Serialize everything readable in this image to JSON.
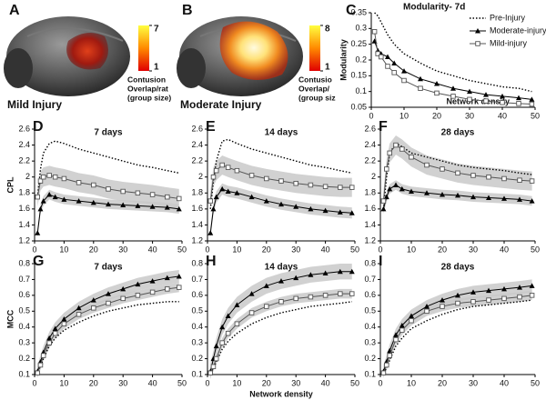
{
  "panels": [
    {
      "label": "A",
      "caption": "Mild Injury",
      "clim": [
        1,
        7
      ],
      "colorbar_ticks": [
        7,
        1
      ],
      "colorbar_label": [
        "Contusion",
        "Overlap/rat",
        "(group size)"
      ]
    },
    {
      "label": "B",
      "caption": "Moderate Injury",
      "clim": [
        1,
        8
      ],
      "colorbar_ticks": [
        8,
        1
      ],
      "colorbar_label": [
        "Contusio",
        "Overlap/",
        "(group siz"
      ]
    }
  ],
  "chart_data": [
    {
      "type": "line",
      "label": "C",
      "title": "Modularity- 7d",
      "ylabel": "Modularity",
      "xlabel": "Network density",
      "legend": "upper right",
      "x": [
        1,
        2,
        3,
        5,
        7,
        10,
        15,
        20,
        25,
        30,
        35,
        40,
        45,
        49
      ],
      "xlim": [
        0,
        50
      ],
      "xticks": [
        0,
        10,
        20,
        30,
        40,
        50
      ],
      "ylim": [
        0.05,
        0.35
      ],
      "yticks": [
        0.05,
        0.1,
        0.15,
        0.2,
        0.25,
        0.3,
        0.35
      ],
      "series": [
        {
          "name": "Pre-Injury",
          "color": "#000000",
          "dash": "dotted",
          "marker": "none",
          "values": [
            0.35,
            0.34,
            0.32,
            0.28,
            0.25,
            0.22,
            0.19,
            0.165,
            0.15,
            0.135,
            0.125,
            0.115,
            0.11,
            0.1
          ]
        },
        {
          "name": "Moderate-injury",
          "color": "#000000",
          "marker": "triangle",
          "values": [
            0.26,
            0.23,
            0.22,
            0.21,
            0.19,
            0.165,
            0.14,
            0.125,
            0.11,
            0.1,
            0.09,
            0.085,
            0.08,
            0.075
          ]
        },
        {
          "name": "Mild-injury",
          "color": "#555555",
          "marker": "square",
          "values": [
            0.29,
            0.22,
            0.21,
            0.18,
            0.16,
            0.135,
            0.11,
            0.095,
            0.085,
            0.075,
            0.07,
            0.065,
            0.062,
            0.06
          ]
        }
      ]
    },
    {
      "type": "line",
      "label": "D",
      "title": "7 days",
      "ylabel": "CPL",
      "x": [
        1,
        2,
        3,
        5,
        7,
        10,
        15,
        20,
        25,
        30,
        35,
        40,
        45,
        49
      ],
      "xlim": [
        0,
        50
      ],
      "xticks": [
        0,
        10,
        20,
        30,
        40,
        50
      ],
      "ylim": [
        1.2,
        2.6
      ],
      "yticks": [
        1.2,
        1.4,
        1.6,
        1.8,
        2,
        2.2,
        2.4,
        2.6
      ],
      "series": [
        {
          "color": "#000000",
          "dash": "dotted",
          "marker": "none",
          "values": [
            1.75,
            2.1,
            2.3,
            2.42,
            2.45,
            2.42,
            2.35,
            2.3,
            2.25,
            2.2,
            2.15,
            2.12,
            2.08,
            2.05
          ]
        },
        {
          "color": "#000000",
          "marker": "triangle",
          "error": 0.06,
          "values": [
            1.3,
            1.6,
            1.7,
            1.78,
            1.75,
            1.72,
            1.7,
            1.68,
            1.66,
            1.65,
            1.64,
            1.63,
            1.62,
            1.6
          ]
        },
        {
          "color": "#555555",
          "marker": "square",
          "error": 0.12,
          "values": [
            1.75,
            1.95,
            2.0,
            2.02,
            2.0,
            1.98,
            1.93,
            1.9,
            1.85,
            1.82,
            1.8,
            1.78,
            1.75,
            1.73
          ]
        }
      ]
    },
    {
      "type": "line",
      "label": "E",
      "title": "14 days",
      "x": [
        1,
        2,
        3,
        5,
        7,
        10,
        15,
        20,
        25,
        30,
        35,
        40,
        45,
        49
      ],
      "xlim": [
        0,
        50
      ],
      "xticks": [
        0,
        10,
        20,
        30,
        40,
        50
      ],
      "ylim": [
        1.2,
        2.6
      ],
      "yticks": [
        1.2,
        1.4,
        1.6,
        1.8,
        2,
        2.2,
        2.4,
        2.6
      ],
      "series": [
        {
          "color": "#000000",
          "dash": "dotted",
          "marker": "none",
          "values": [
            1.6,
            1.95,
            2.2,
            2.45,
            2.47,
            2.42,
            2.35,
            2.3,
            2.25,
            2.2,
            2.15,
            2.12,
            2.08,
            2.05
          ]
        },
        {
          "color": "#000000",
          "marker": "triangle",
          "error": 0.07,
          "values": [
            1.3,
            1.6,
            1.75,
            1.85,
            1.82,
            1.8,
            1.75,
            1.7,
            1.66,
            1.63,
            1.6,
            1.58,
            1.56,
            1.55
          ]
        },
        {
          "color": "#555555",
          "marker": "square",
          "error": 0.12,
          "values": [
            1.7,
            2.0,
            2.08,
            2.15,
            2.12,
            2.08,
            2.02,
            1.98,
            1.95,
            1.92,
            1.9,
            1.88,
            1.87,
            1.87
          ]
        }
      ]
    },
    {
      "type": "line",
      "label": "F",
      "title": "28 days",
      "x": [
        1,
        2,
        3,
        5,
        7,
        10,
        15,
        20,
        25,
        30,
        35,
        40,
        45,
        49
      ],
      "xlim": [
        0,
        50
      ],
      "xticks": [
        0,
        10,
        20,
        30,
        40,
        50
      ],
      "ylim": [
        1.2,
        2.6
      ],
      "yticks": [
        1.2,
        1.4,
        1.6,
        1.8,
        2,
        2.2,
        2.4,
        2.6
      ],
      "series": [
        {
          "color": "#000000",
          "dash": "dotted",
          "marker": "none",
          "values": [
            1.6,
            2.0,
            2.3,
            2.42,
            2.38,
            2.3,
            2.25,
            2.2,
            2.15,
            2.12,
            2.1,
            2.08,
            2.05,
            2.03
          ]
        },
        {
          "color": "#000000",
          "marker": "triangle",
          "error": 0.06,
          "values": [
            1.6,
            1.75,
            1.85,
            1.9,
            1.85,
            1.82,
            1.8,
            1.78,
            1.77,
            1.75,
            1.74,
            1.73,
            1.72,
            1.7
          ]
        },
        {
          "color": "#555555",
          "marker": "square",
          "error": 0.12,
          "values": [
            1.7,
            2.1,
            2.3,
            2.4,
            2.35,
            2.25,
            2.15,
            2.1,
            2.05,
            2.02,
            2.0,
            1.98,
            1.96,
            1.95
          ]
        }
      ]
    },
    {
      "type": "line",
      "label": "G",
      "title": "7 days",
      "ylabel": "MCC",
      "x": [
        1,
        2,
        3,
        5,
        7,
        10,
        15,
        20,
        25,
        30,
        35,
        40,
        45,
        49
      ],
      "xlim": [
        0,
        50
      ],
      "xticks": [
        0,
        10,
        20,
        30,
        40,
        50
      ],
      "ylim": [
        0.1,
        0.8
      ],
      "yticks": [
        0.1,
        0.2,
        0.3,
        0.4,
        0.5,
        0.6,
        0.7,
        0.8
      ],
      "series": [
        {
          "color": "#000000",
          "dash": "dotted",
          "marker": "none",
          "values": [
            0.12,
            0.15,
            0.2,
            0.28,
            0.33,
            0.38,
            0.43,
            0.47,
            0.5,
            0.52,
            0.54,
            0.55,
            0.56,
            0.56
          ]
        },
        {
          "color": "#000000",
          "marker": "triangle",
          "error": 0.04,
          "values": [
            0.12,
            0.18,
            0.24,
            0.33,
            0.39,
            0.45,
            0.52,
            0.57,
            0.61,
            0.64,
            0.67,
            0.69,
            0.71,
            0.72
          ]
        },
        {
          "color": "#555555",
          "marker": "square",
          "error": 0.03,
          "values": [
            0.11,
            0.16,
            0.22,
            0.3,
            0.36,
            0.42,
            0.48,
            0.52,
            0.55,
            0.58,
            0.6,
            0.62,
            0.64,
            0.65
          ]
        }
      ]
    },
    {
      "type": "line",
      "label": "H",
      "title": "14 days",
      "xlabel": "Network density",
      "x": [
        1,
        2,
        3,
        5,
        7,
        10,
        15,
        20,
        25,
        30,
        35,
        40,
        45,
        49
      ],
      "xlim": [
        0,
        50
      ],
      "xticks": [
        0,
        10,
        20,
        30,
        40,
        50
      ],
      "ylim": [
        0.1,
        0.8
      ],
      "yticks": [
        0.1,
        0.2,
        0.3,
        0.4,
        0.5,
        0.6,
        0.7,
        0.8
      ],
      "series": [
        {
          "color": "#000000",
          "dash": "dotted",
          "marker": "none",
          "values": [
            0.11,
            0.14,
            0.18,
            0.26,
            0.31,
            0.36,
            0.42,
            0.46,
            0.49,
            0.51,
            0.53,
            0.54,
            0.55,
            0.56
          ]
        },
        {
          "color": "#000000",
          "marker": "triangle",
          "error": 0.05,
          "values": [
            0.12,
            0.2,
            0.28,
            0.4,
            0.47,
            0.54,
            0.61,
            0.66,
            0.69,
            0.71,
            0.73,
            0.74,
            0.75,
            0.75
          ]
        },
        {
          "color": "#555555",
          "marker": "square",
          "error": 0.03,
          "values": [
            0.11,
            0.15,
            0.2,
            0.3,
            0.36,
            0.42,
            0.49,
            0.53,
            0.56,
            0.58,
            0.59,
            0.6,
            0.61,
            0.61
          ]
        }
      ]
    },
    {
      "type": "line",
      "label": "I",
      "title": "28 days",
      "x": [
        1,
        2,
        3,
        5,
        7,
        10,
        15,
        20,
        25,
        30,
        35,
        40,
        45,
        49
      ],
      "xlim": [
        0,
        50
      ],
      "xticks": [
        0,
        10,
        20,
        30,
        40,
        50
      ],
      "ylim": [
        0.1,
        0.8
      ],
      "yticks": [
        0.1,
        0.2,
        0.3,
        0.4,
        0.5,
        0.6,
        0.7,
        0.8
      ],
      "series": [
        {
          "color": "#000000",
          "dash": "dotted",
          "marker": "none",
          "values": [
            0.11,
            0.14,
            0.19,
            0.28,
            0.33,
            0.39,
            0.44,
            0.48,
            0.51,
            0.53,
            0.54,
            0.55,
            0.56,
            0.57
          ]
        },
        {
          "color": "#000000",
          "marker": "triangle",
          "error": 0.04,
          "values": [
            0.12,
            0.18,
            0.25,
            0.35,
            0.41,
            0.47,
            0.53,
            0.57,
            0.6,
            0.62,
            0.63,
            0.64,
            0.65,
            0.66
          ]
        },
        {
          "color": "#555555",
          "marker": "square",
          "error": 0.03,
          "values": [
            0.11,
            0.16,
            0.22,
            0.32,
            0.38,
            0.44,
            0.5,
            0.53,
            0.55,
            0.56,
            0.57,
            0.58,
            0.59,
            0.6
          ]
        }
      ]
    }
  ]
}
